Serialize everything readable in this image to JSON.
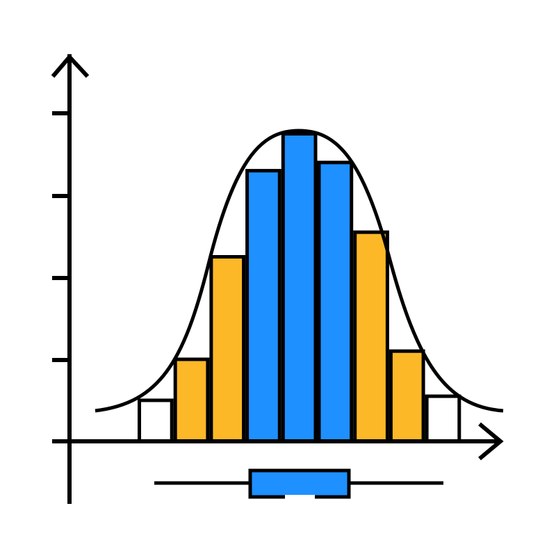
{
  "chart_data": {
    "type": "bar",
    "categories": [
      null,
      null,
      null,
      null,
      null,
      null,
      null,
      null,
      null
    ],
    "values": [
      0.5,
      1,
      2.25,
      3.3,
      3.75,
      3.4,
      2.55,
      1.1,
      0.55
    ],
    "colors": [
      "#ffffff",
      "#fdb827",
      "#fdb827",
      "#1e90ff",
      "#1e90ff",
      "#1e90ff",
      "#fdb827",
      "#fdb827",
      "#ffffff"
    ],
    "ylim": [
      0,
      4
    ]
  }
}
